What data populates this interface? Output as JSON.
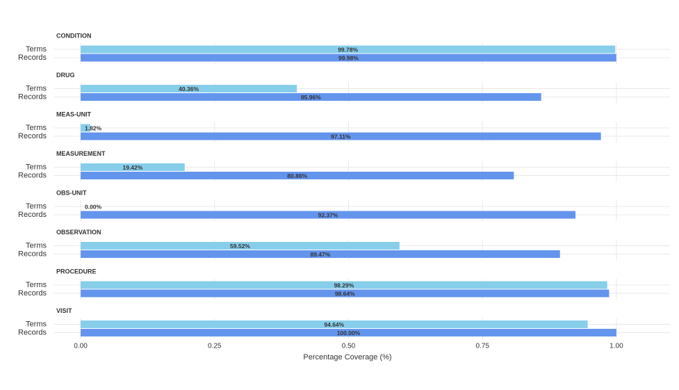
{
  "chart_data": {
    "type": "bar",
    "orientation": "horizontal",
    "categories": [
      "Terms",
      "Records"
    ],
    "colors": [
      "#87ceeb",
      "#6495ed"
    ],
    "panels": [
      {
        "title": "CONDITION",
        "values": [
          0.9978,
          0.9998
        ],
        "value_labels": [
          "99.78%",
          "99.98%"
        ]
      },
      {
        "title": "DRUG",
        "values": [
          0.4036,
          0.8596
        ],
        "value_labels": [
          "40.36%",
          "85.96%"
        ]
      },
      {
        "title": "MEAS-UNIT",
        "values": [
          0.0182,
          0.9711
        ],
        "value_labels": [
          "1.82%",
          "97.11%"
        ]
      },
      {
        "title": "MEASUREMENT",
        "values": [
          0.1942,
          0.8086
        ],
        "value_labels": [
          "19.42%",
          "80.86%"
        ]
      },
      {
        "title": "OBS-UNIT",
        "values": [
          0.0,
          0.9237
        ],
        "value_labels": [
          "0.00%",
          "92.37%"
        ]
      },
      {
        "title": "OBSERVATION",
        "values": [
          0.5952,
          0.8947
        ],
        "value_labels": [
          "59.52%",
          "89.47%"
        ]
      },
      {
        "title": "PROCEDURE",
        "values": [
          0.9829,
          0.9864
        ],
        "value_labels": [
          "98.29%",
          "98.64%"
        ]
      },
      {
        "title": "VISIT",
        "values": [
          0.9464,
          1.0
        ],
        "value_labels": [
          "94.64%",
          "100.00%"
        ]
      }
    ],
    "xlabel": "Percentage Coverage (%)",
    "xlim": [
      -0.05,
      1.1
    ],
    "xticks": [
      {
        "value": 0,
        "label": "0.00"
      },
      {
        "value": 0.25,
        "label": "0.25"
      },
      {
        "value": 0.5,
        "label": "0.50"
      },
      {
        "value": 0.75,
        "label": "0.75"
      },
      {
        "value": 1,
        "label": "1.00"
      }
    ],
    "grid": true
  }
}
